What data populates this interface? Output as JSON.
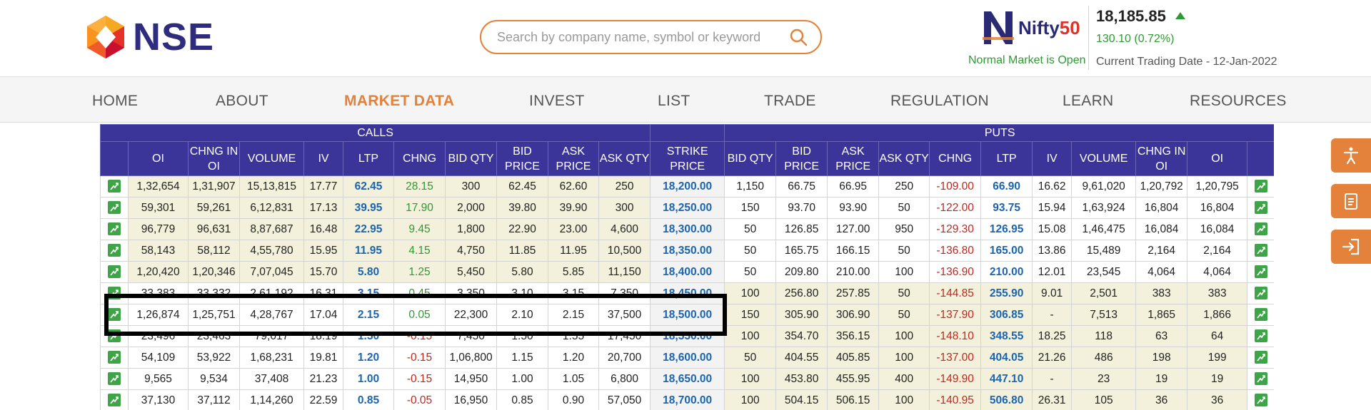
{
  "header": {
    "logo_text": "NSE",
    "search_placeholder": "Search by company name, symbol or keyword",
    "nifty_word_1": "Nifty",
    "nifty_word_2": "50",
    "index_value": "18,185.85",
    "index_change": "130.10 (0.72%)",
    "market_status": "Normal Market is Open",
    "trading_date": "Current Trading Date - 12-Jan-2022"
  },
  "nav": {
    "items": [
      "HOME",
      "ABOUT",
      "MARKET DATA",
      "INVEST",
      "LIST",
      "TRADE",
      "REGULATION",
      "LEARN",
      "RESOURCES"
    ],
    "active": "MARKET DATA"
  },
  "table": {
    "group_calls": "CALLS",
    "group_puts": "PUTS",
    "call_headers": [
      "OI",
      "CHNG IN OI",
      "VOLUME",
      "IV",
      "LTP",
      "CHNG",
      "BID QTY",
      "BID PRICE",
      "ASK PRICE",
      "ASK QTY"
    ],
    "strike_header": "STRIKE PRICE",
    "put_headers": [
      "BID QTY",
      "BID PRICE",
      "ASK PRICE",
      "ASK QTY",
      "CHNG",
      "LTP",
      "IV",
      "VOLUME",
      "CHNG IN OI",
      "OI"
    ],
    "rows": [
      {
        "call": [
          "1,32,654",
          "1,31,907",
          "15,13,815",
          "17.77",
          "62.45",
          "28.15",
          "300",
          "62.45",
          "62.60",
          "250"
        ],
        "strike": "18,200.00",
        "put": [
          "1,150",
          "66.75",
          "66.95",
          "250",
          "-109.00",
          "66.90",
          "16.62",
          "9,61,020",
          "1,20,792",
          "1,20,795"
        ]
      },
      {
        "call": [
          "59,301",
          "59,261",
          "6,12,831",
          "17.13",
          "39.95",
          "17.90",
          "2,000",
          "39.80",
          "39.90",
          "300"
        ],
        "strike": "18,250.00",
        "put": [
          "150",
          "93.70",
          "93.90",
          "50",
          "-122.00",
          "93.75",
          "15.94",
          "1,63,924",
          "16,804",
          "16,804"
        ]
      },
      {
        "call": [
          "96,779",
          "96,631",
          "8,87,687",
          "16.48",
          "22.95",
          "9.45",
          "1,800",
          "22.90",
          "23.00",
          "4,600"
        ],
        "strike": "18,300.00",
        "put": [
          "50",
          "126.85",
          "127.00",
          "950",
          "-129.30",
          "126.95",
          "15.08",
          "1,46,475",
          "16,084",
          "16,084"
        ]
      },
      {
        "call": [
          "58,143",
          "58,112",
          "4,55,780",
          "15.95",
          "11.95",
          "4.15",
          "4,750",
          "11.85",
          "11.95",
          "10,500"
        ],
        "strike": "18,350.00",
        "put": [
          "50",
          "165.75",
          "166.15",
          "50",
          "-136.80",
          "165.00",
          "13.86",
          "15,489",
          "2,164",
          "2,164"
        ]
      },
      {
        "call": [
          "1,20,420",
          "1,20,346",
          "7,07,045",
          "15.70",
          "5.80",
          "1.25",
          "5,450",
          "5.80",
          "5.85",
          "11,150"
        ],
        "strike": "18,400.00",
        "put": [
          "50",
          "209.80",
          "210.00",
          "100",
          "-136.90",
          "210.00",
          "12.01",
          "23,545",
          "4,064",
          "4,064"
        ]
      },
      {
        "call": [
          "33,383",
          "33,332",
          "2,61,192",
          "16.31",
          "3.15",
          "0.45",
          "3,350",
          "3.10",
          "3.15",
          "7,350"
        ],
        "strike": "18,450.00",
        "put": [
          "100",
          "256.80",
          "257.85",
          "50",
          "-144.85",
          "255.90",
          "9.01",
          "2,501",
          "383",
          "383"
        ]
      },
      {
        "call": [
          "1,26,874",
          "1,25,751",
          "4,28,767",
          "17.04",
          "2.15",
          "0.05",
          "22,300",
          "2.10",
          "2.15",
          "37,500"
        ],
        "strike": "18,500.00",
        "put": [
          "150",
          "305.90",
          "306.90",
          "50",
          "-137.90",
          "306.85",
          "-",
          "7,513",
          "1,865",
          "1,866"
        ]
      },
      {
        "call": [
          "23,496",
          "23,463",
          "79,017",
          "18.19",
          "1.50",
          "-0.15",
          "7,450",
          "1.50",
          "1.55",
          "17,450"
        ],
        "strike": "18,550.00",
        "put": [
          "100",
          "354.70",
          "356.15",
          "100",
          "-148.10",
          "348.55",
          "18.25",
          "118",
          "63",
          "64"
        ]
      },
      {
        "call": [
          "54,109",
          "53,922",
          "1,68,231",
          "19.81",
          "1.20",
          "-0.15",
          "1,06,800",
          "1.15",
          "1.20",
          "20,700"
        ],
        "strike": "18,600.00",
        "put": [
          "50",
          "404.55",
          "405.85",
          "100",
          "-137.00",
          "404.05",
          "21.26",
          "486",
          "198",
          "199"
        ]
      },
      {
        "call": [
          "9,565",
          "9,534",
          "37,408",
          "21.23",
          "1.00",
          "-0.15",
          "14,950",
          "1.00",
          "1.05",
          "6,800"
        ],
        "strike": "18,650.00",
        "put": [
          "100",
          "453.80",
          "455.95",
          "400",
          "-149.90",
          "447.10",
          "-",
          "23",
          "19",
          "19"
        ]
      },
      {
        "call": [
          "37,130",
          "37,112",
          "1,14,260",
          "22.59",
          "0.85",
          "-0.05",
          "16,950",
          "0.85",
          "0.90",
          "57,050"
        ],
        "strike": "18,700.00",
        "put": [
          "100",
          "504.15",
          "506.15",
          "100",
          "-140.95",
          "506.80",
          "26.31",
          "105",
          "36",
          "36"
        ]
      }
    ]
  },
  "colors": {
    "brand_orange": "#e4813a",
    "header_purple": "#3b3499",
    "itm_shade": "#f3f1dc",
    "positive": "#2d9a32",
    "negative": "#c0281f",
    "link_blue": "#1a64b0"
  },
  "icons": {
    "chart": "chart-icon",
    "accessibility": "accessibility-icon",
    "clipboard": "clipboard-icon",
    "login": "login-icon"
  }
}
